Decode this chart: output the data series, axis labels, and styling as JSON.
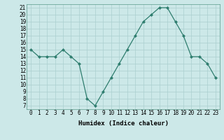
{
  "x": [
    0,
    1,
    2,
    3,
    4,
    5,
    6,
    7,
    8,
    9,
    10,
    11,
    12,
    13,
    14,
    15,
    16,
    17,
    18,
    19,
    20,
    21,
    22,
    23
  ],
  "y": [
    15,
    14,
    14,
    14,
    15,
    14,
    13,
    8,
    7,
    9,
    11,
    13,
    15,
    17,
    19,
    20,
    21,
    21,
    19,
    17,
    14,
    14,
    13,
    11
  ],
  "xlabel": "Humidex (Indice chaleur)",
  "xlim": [
    -0.5,
    23.5
  ],
  "ylim": [
    6.5,
    21.5
  ],
  "yticks": [
    7,
    8,
    9,
    10,
    11,
    12,
    13,
    14,
    15,
    16,
    17,
    18,
    19,
    20,
    21
  ],
  "xticks": [
    0,
    1,
    2,
    3,
    4,
    5,
    6,
    7,
    8,
    9,
    10,
    11,
    12,
    13,
    14,
    15,
    16,
    17,
    18,
    19,
    20,
    21,
    22,
    23
  ],
  "line_color": "#2e7d6e",
  "marker": "D",
  "marker_size": 2.0,
  "bg_color": "#cce8e8",
  "grid_color": "#aacfcf",
  "axis_fontsize": 6.5,
  "tick_fontsize": 5.5
}
